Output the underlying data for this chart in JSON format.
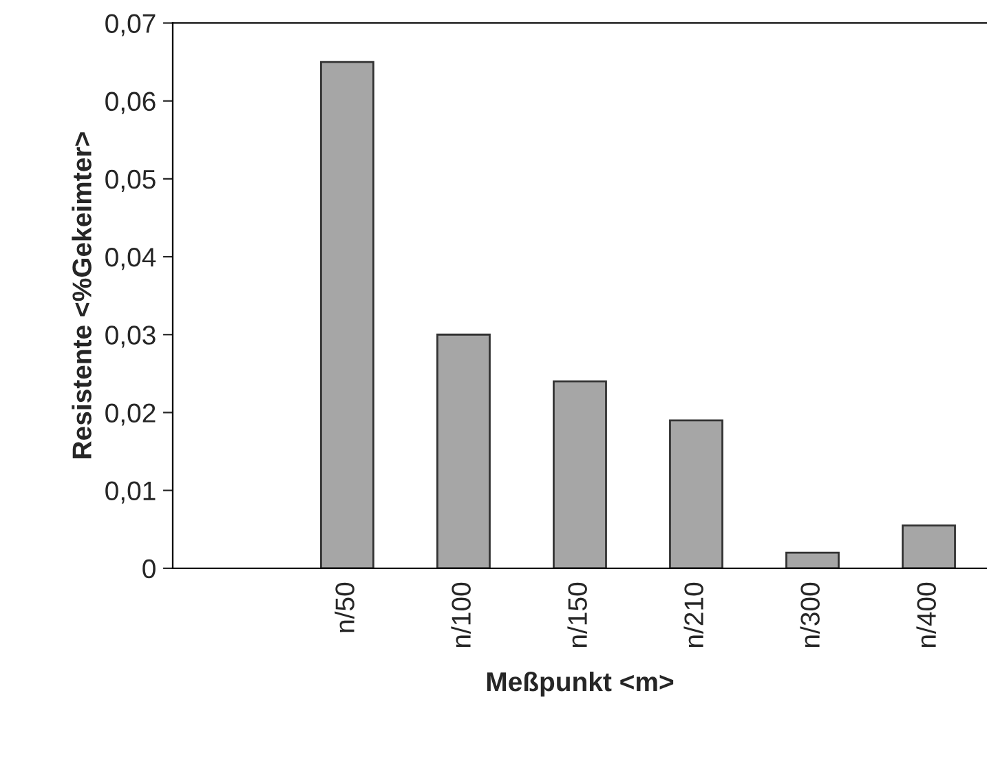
{
  "chart_data": {
    "type": "bar",
    "xlabel": "Meßpunkt <m>",
    "ylabel": "Resistente <%Gekeimter>",
    "categories": [
      null,
      "n/50",
      "n/100",
      "n/150",
      "n/210",
      "n/300",
      "n/400"
    ],
    "values": [
      null,
      0.065,
      0.03,
      0.024,
      0.019,
      0.002,
      0.0055
    ],
    "color": "#a6a6a6",
    "ylim": [
      0,
      0.07
    ],
    "yticks": [
      0,
      {
        "value": 0.01,
        "label": "0,01"
      },
      {
        "value": 0.02,
        "label": "0,02"
      },
      {
        "value": 0.03,
        "label": "0,03"
      },
      {
        "value": 0.04,
        "label": "0,04"
      },
      {
        "value": 0.05,
        "label": "0,05"
      },
      {
        "value": 0.06,
        "label": "0,06"
      },
      {
        "value": 0.07,
        "label": "0,07"
      }
    ],
    "grid": false
  }
}
